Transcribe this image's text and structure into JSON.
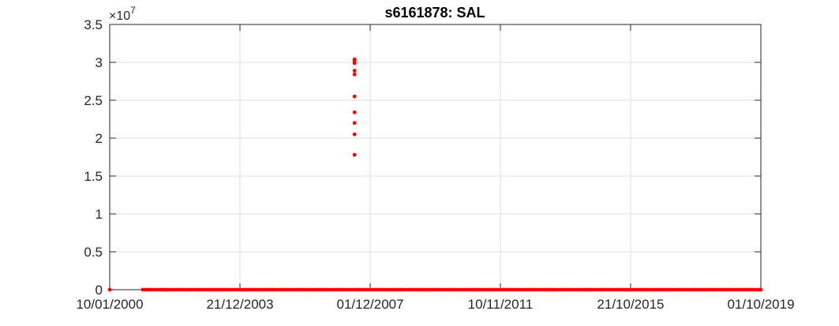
{
  "chart_data": {
    "type": "scatter",
    "title": "s6161878: SAL",
    "xlabel": "",
    "ylabel": "",
    "x_ticks": [
      "10/01/2000",
      "21/12/2003",
      "01/12/2007",
      "10/11/2011",
      "21/10/2015",
      "01/10/2019"
    ],
    "y_ticks": [
      "0",
      "0.5",
      "1",
      "1.5",
      "2",
      "2.5",
      "3",
      "3.5"
    ],
    "y_tick_values": [
      0,
      0.5,
      1,
      1.5,
      2,
      2.5,
      3,
      3.5
    ],
    "y_multiplier": {
      "base": "10",
      "exponent": "7"
    },
    "xlim": [
      "2000-01-10",
      "2019-10-01"
    ],
    "ylim": [
      0,
      3.5
    ],
    "grid": true,
    "marker_color": "#ff0000",
    "series": [
      {
        "spike_points": [
          {
            "x": "2007-06-10",
            "y": 3.04
          },
          {
            "x": "2007-06-10",
            "y": 3.02
          },
          {
            "x": "2007-06-10",
            "y": 2.99
          },
          {
            "x": "2007-06-10",
            "y": 2.89
          },
          {
            "x": "2007-06-10",
            "y": 2.84
          },
          {
            "x": "2007-06-10",
            "y": 2.55
          },
          {
            "x": "2007-06-10",
            "y": 2.34
          },
          {
            "x": "2007-06-10",
            "y": 2.2
          },
          {
            "x": "2007-06-10",
            "y": 2.05
          },
          {
            "x": "2007-06-10",
            "y": 1.78
          }
        ],
        "baseline_isolated_points": [
          {
            "x": "2000-01-10",
            "y": 0
          }
        ],
        "baseline_dense_range": {
          "from": "2001-01-10",
          "to": "2019-10-01",
          "y": 0
        }
      }
    ]
  }
}
